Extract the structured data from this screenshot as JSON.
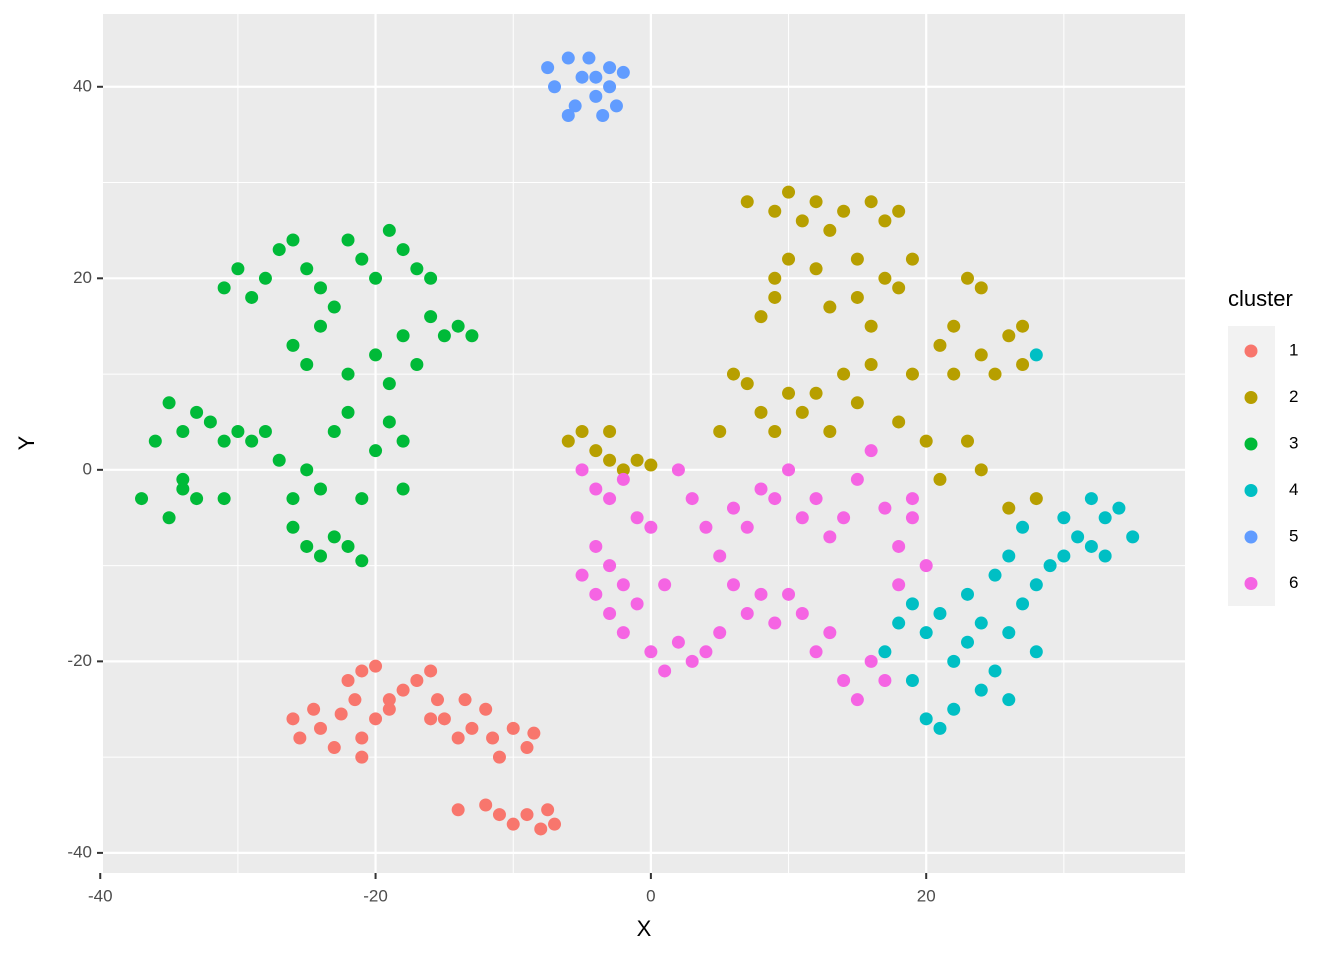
{
  "chart_data": {
    "type": "scatter",
    "x_label": "X",
    "y_label": "Y",
    "legend_title": "cluster",
    "xlim": [
      -39.8,
      38.8
    ],
    "ylim": [
      -42.1,
      47.6
    ],
    "xticks": [
      -40,
      -20,
      0,
      20
    ],
    "yticks": [
      -40,
      -20,
      0,
      20,
      40
    ],
    "xminor": [
      -30,
      -10,
      10,
      30
    ],
    "yminor": [
      -30,
      -10,
      10,
      30
    ],
    "grid": true,
    "legend": "right",
    "series": [
      {
        "name": "1",
        "color": "#F8766D",
        "x": [
          -26,
          -25.5,
          -24.5,
          -24,
          -23,
          -22,
          -21.5,
          -21,
          -20,
          -21,
          -21,
          -20,
          -19,
          -18,
          -17,
          -16,
          -15.5,
          -15,
          -14,
          -13.5,
          -13,
          -12,
          -11.5,
          -11,
          -10,
          -9,
          -8.5,
          -14,
          -12,
          -11,
          -10,
          -9,
          -8,
          -7,
          -7.5,
          -16,
          -22.5,
          -19
        ],
        "y": [
          -26,
          -28,
          -25,
          -27,
          -29,
          -22,
          -24,
          -21,
          -20.5,
          -28,
          -30,
          -26,
          -24,
          -23,
          -22,
          -21,
          -24,
          -26,
          -28,
          -24,
          -27,
          -25,
          -28,
          -30,
          -27,
          -29,
          -27.5,
          -35.5,
          -35,
          -36,
          -37,
          -36,
          -37.5,
          -37,
          -35.5,
          -26,
          -25.5,
          -25
        ]
      },
      {
        "name": "2",
        "color": "#B79F00",
        "x": [
          -6,
          -5,
          -4,
          -3,
          -2,
          -1,
          0,
          -3,
          5,
          6,
          7,
          8,
          9,
          7,
          9,
          10,
          11,
          12,
          13,
          14,
          15,
          16,
          17,
          18,
          9,
          10,
          12,
          8,
          9,
          13,
          15,
          16,
          17,
          18,
          19,
          10,
          11,
          12,
          13,
          14,
          15,
          16,
          18,
          19,
          20,
          21,
          22,
          23,
          24,
          24,
          25,
          26,
          27,
          27,
          23,
          24,
          26,
          28,
          22,
          21
        ],
        "y": [
          3,
          4,
          2,
          1,
          0,
          1,
          0.5,
          4,
          4,
          10,
          9,
          6,
          4,
          28,
          27,
          29,
          26,
          28,
          25,
          27,
          22,
          28,
          26,
          27,
          20,
          22,
          21,
          16,
          18,
          17,
          18,
          15,
          20,
          19,
          22,
          8,
          6,
          8,
          4,
          10,
          7,
          11,
          5,
          10,
          3,
          13,
          15,
          20,
          19,
          12,
          10,
          14,
          11,
          15,
          3,
          0,
          -4,
          -3,
          10,
          -1
        ]
      },
      {
        "name": "3",
        "color": "#00BA38",
        "x": [
          -31,
          -30,
          -29,
          -28,
          -27,
          -26,
          -25,
          -24,
          -23,
          -22,
          -21,
          -20,
          -19,
          -18,
          -17,
          -16,
          -16,
          -15,
          -13,
          -14,
          -26,
          -25,
          -24,
          -22,
          -20,
          -19,
          -18,
          -17,
          -35,
          -34,
          -33,
          -32,
          -31,
          -30,
          -29,
          -36,
          -28,
          -37,
          -35,
          -34,
          -33,
          -34,
          -31,
          -26,
          -25,
          -24,
          -23,
          -22,
          -21,
          -20,
          -19,
          -18,
          -18,
          -26,
          -25,
          -24,
          -23,
          -22,
          -21,
          -27
        ],
        "y": [
          19,
          21,
          18,
          20,
          23,
          24,
          21,
          19,
          17,
          24,
          22,
          20,
          25,
          23,
          21,
          20,
          16,
          14,
          14,
          15,
          13,
          11,
          15,
          10,
          12,
          9,
          14,
          11,
          7,
          4,
          6,
          5,
          3,
          4,
          3,
          3,
          4,
          -3,
          -5,
          -2,
          -3,
          -1,
          -3,
          -3,
          0,
          -2,
          4,
          6,
          -3,
          2,
          5,
          -2,
          3,
          -6,
          -8,
          -9,
          -7,
          -8,
          -9.5,
          1
        ]
      },
      {
        "name": "4",
        "color": "#00BFC4",
        "x": [
          17,
          18,
          19,
          20,
          21,
          19,
          20,
          21,
          22,
          22,
          23,
          23,
          24,
          24,
          25,
          25,
          26,
          26,
          27,
          27,
          28,
          28,
          29,
          30,
          30,
          31,
          32,
          32,
          33,
          34,
          35,
          33,
          28,
          26
        ],
        "y": [
          -19,
          -16,
          -14,
          -17,
          -15,
          -22,
          -26,
          -27,
          -25,
          -20,
          -18,
          -13,
          -23,
          -16,
          -21,
          -11,
          -17,
          -9,
          -6,
          -14,
          -12,
          -19,
          -10,
          -9,
          -5,
          -7,
          -8,
          -3,
          -5,
          -4,
          -7,
          -9,
          12,
          -24
        ]
      },
      {
        "name": "5",
        "color": "#619CFF",
        "x": [
          -7.5,
          -7,
          -6,
          -5.5,
          -5,
          -4.5,
          -4,
          -3.5,
          -3,
          -2.5,
          -2,
          -6,
          -4,
          -3
        ],
        "y": [
          42,
          40,
          43,
          38,
          41,
          43,
          39,
          37,
          40,
          38,
          41.5,
          37,
          41,
          42
        ]
      },
      {
        "name": "6",
        "color": "#F564E3",
        "x": [
          -5,
          -4,
          -3,
          -2,
          -1,
          0,
          -4,
          -3,
          -5,
          -4,
          -3,
          -2,
          -1,
          0,
          1,
          2,
          3,
          4,
          5,
          -2,
          1,
          2,
          3,
          4,
          5,
          6,
          7,
          8,
          9,
          10,
          11,
          12,
          13,
          14,
          15,
          16,
          17,
          18,
          19,
          20,
          7,
          8,
          9,
          10,
          11,
          12,
          13,
          14,
          15,
          16,
          17,
          18,
          19,
          6
        ],
        "y": [
          0,
          -2,
          -3,
          -1,
          -5,
          -6,
          -8,
          -10,
          -11,
          -13,
          -15,
          -17,
          -14,
          -19,
          -21,
          -18,
          -20,
          -19,
          -17,
          -12,
          -12,
          0,
          -3,
          -6,
          -9,
          -4,
          -6,
          -2,
          -3,
          0,
          -5,
          -3,
          -7,
          -5,
          -1,
          2,
          -4,
          -8,
          -5,
          -10,
          -15,
          -13,
          -16,
          -13,
          -15,
          -19,
          -17,
          -22,
          -24,
          -20,
          -22,
          -12,
          -3,
          -12
        ]
      }
    ]
  }
}
